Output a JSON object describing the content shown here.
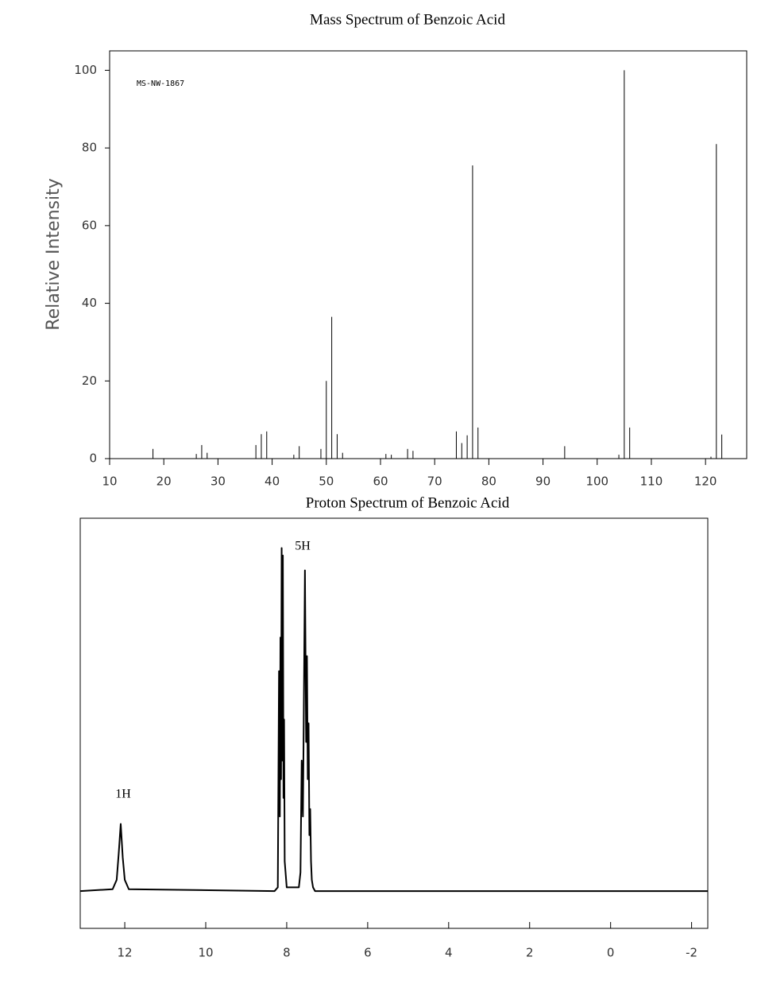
{
  "chart_data": [
    {
      "type": "bar",
      "title": "Mass Spectrum of Benzoic Acid",
      "y_label": "Relative Intensity",
      "annotations": [
        "MS-NW-1867"
      ],
      "x": [
        18,
        26,
        27,
        28,
        37,
        38,
        39,
        44,
        45,
        49,
        50,
        51,
        52,
        53,
        61,
        62,
        65,
        66,
        74,
        75,
        76,
        77,
        78,
        94,
        104,
        105,
        106,
        121,
        122,
        123
      ],
      "values": [
        2.5,
        1.2,
        3.5,
        1.5,
        3.5,
        6.3,
        7,
        1,
        3.2,
        2.5,
        20,
        36.5,
        6.3,
        1.5,
        1.2,
        1,
        2.5,
        2,
        7,
        4,
        6,
        75.5,
        8,
        3.2,
        1,
        100,
        8,
        0.5,
        81,
        6.2
      ],
      "color": "#000000",
      "xlim": [
        10,
        127.6
      ],
      "xticks": [
        10,
        20,
        30,
        40,
        50,
        60,
        70,
        80,
        90,
        100,
        110,
        120
      ],
      "ylim": [
        0,
        105
      ],
      "yticks": [
        0,
        20,
        40,
        60,
        80,
        100
      ]
    },
    {
      "type": "line",
      "title": "Proton Spectrum of Benzoic Acid",
      "annotations": [
        "1H",
        "5H"
      ],
      "x": [
        13.1,
        12.3,
        12.2,
        12.15,
        12.1,
        12.05,
        12.0,
        11.9,
        8.3,
        8.22,
        8.19,
        8.17,
        8.155,
        8.14,
        8.125,
        8.11,
        8.095,
        8.08,
        8.065,
        8.05,
        8.0,
        7.7,
        7.66,
        7.63,
        7.6,
        7.58,
        7.55,
        7.52,
        7.5,
        7.48,
        7.46,
        7.44,
        7.42,
        7.4,
        7.38,
        7.35,
        7.3,
        -2.4
      ],
      "values": [
        0,
        0.5,
        3,
        10,
        18,
        9,
        3,
        0.5,
        0,
        1,
        59,
        20,
        68,
        30,
        92,
        35,
        90,
        25,
        46,
        8,
        1,
        1,
        5,
        35,
        20,
        45,
        86,
        40,
        63,
        30,
        45,
        15,
        22,
        8,
        3,
        1,
        0,
        0
      ],
      "color": "#000000",
      "xlim": [
        13.1,
        -2.4
      ],
      "xticks": [
        12,
        10,
        8,
        6,
        4,
        2,
        0,
        {
          "value": -2,
          "label": "-2"
        }
      ],
      "ylim": [
        -10,
        100
      ]
    }
  ]
}
